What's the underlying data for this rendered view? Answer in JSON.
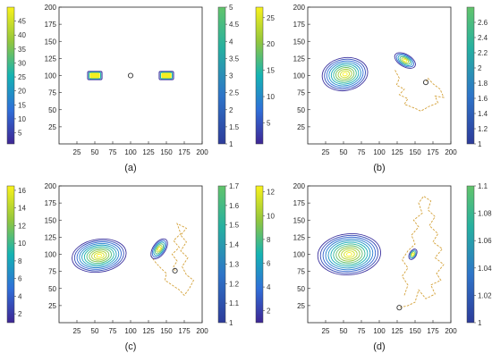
{
  "chart_data": [
    {
      "type": "contour",
      "label": "(a)",
      "xlim": [
        0,
        200
      ],
      "ylim": [
        0,
        200
      ],
      "xticks": [
        25,
        50,
        75,
        100,
        125,
        150,
        175,
        200
      ],
      "yticks": [
        25,
        50,
        75,
        100,
        125,
        150,
        175,
        200
      ],
      "left_colorbar": {
        "range": [
          1,
          50
        ],
        "ticks": [
          5,
          10,
          15,
          20,
          25,
          30,
          35,
          40,
          45
        ]
      },
      "right_colorbar": {
        "range": [
          1,
          5
        ],
        "ticks": [
          1,
          1.5,
          2,
          2.5,
          3,
          3.5,
          4,
          4.5,
          5
        ]
      },
      "blobs": [
        {
          "shape": "rect",
          "center": [
            50,
            100
          ],
          "size": [
            20,
            12
          ],
          "levels": 3
        },
        {
          "shape": "rect",
          "center": [
            150,
            100
          ],
          "size": [
            20,
            12
          ],
          "levels": 3
        }
      ],
      "marker": [
        100,
        100
      ],
      "path": []
    },
    {
      "type": "contour",
      "label": "(b)",
      "xlim": [
        0,
        200
      ],
      "ylim": [
        0,
        200
      ],
      "xticks": [
        25,
        50,
        75,
        100,
        125,
        150,
        175,
        200
      ],
      "yticks": [
        25,
        50,
        75,
        100,
        125,
        150,
        175,
        200
      ],
      "left_colorbar": {
        "range": [
          1,
          27
        ],
        "ticks": [
          5,
          10,
          15,
          20,
          25
        ]
      },
      "right_colorbar": {
        "range": [
          1,
          2.8
        ],
        "ticks": [
          1,
          1.2,
          1.4,
          1.6,
          1.8,
          2,
          2.2,
          2.4,
          2.6
        ]
      },
      "blobs": [
        {
          "shape": "ellipse",
          "center": [
            52,
            102
          ],
          "radii": [
            32,
            24
          ],
          "angle": -10,
          "levels": 10
        },
        {
          "shape": "ellipse",
          "center": [
            136,
            122
          ],
          "radii": [
            16,
            9
          ],
          "angle": 30,
          "levels": 6
        }
      ],
      "marker": [
        165,
        90
      ],
      "path": [
        [
          122,
          108
        ],
        [
          128,
          96
        ],
        [
          124,
          86
        ],
        [
          135,
          80
        ],
        [
          128,
          72
        ],
        [
          140,
          66
        ],
        [
          135,
          58
        ],
        [
          150,
          52
        ],
        [
          158,
          48
        ],
        [
          170,
          55
        ],
        [
          182,
          60
        ],
        [
          178,
          70
        ],
        [
          190,
          68
        ],
        [
          185,
          80
        ],
        [
          175,
          88
        ],
        [
          168,
          96
        ],
        [
          165,
          90
        ]
      ]
    },
    {
      "type": "contour",
      "label": "(c)",
      "xlim": [
        0,
        200
      ],
      "ylim": [
        0,
        200
      ],
      "xticks": [
        25,
        50,
        75,
        100,
        125,
        150,
        175,
        200
      ],
      "yticks": [
        25,
        50,
        75,
        100,
        125,
        150,
        175,
        200
      ],
      "left_colorbar": {
        "range": [
          1,
          16.5
        ],
        "ticks": [
          2,
          4,
          6,
          8,
          10,
          12,
          14,
          16
        ]
      },
      "right_colorbar": {
        "range": [
          1,
          1.7
        ],
        "ticks": [
          1,
          1.1,
          1.2,
          1.3,
          1.4,
          1.5,
          1.6,
          1.7
        ]
      },
      "blobs": [
        {
          "shape": "ellipse",
          "center": [
            56,
            98
          ],
          "radii": [
            38,
            24
          ],
          "angle": -8,
          "levels": 11
        },
        {
          "shape": "ellipse",
          "center": [
            140,
            108
          ],
          "radii": [
            16,
            9
          ],
          "angle": -55,
          "levels": 6
        }
      ],
      "marker": [
        162,
        76
      ],
      "path": [
        [
          128,
          98
        ],
        [
          135,
          88
        ],
        [
          142,
          80
        ],
        [
          150,
          72
        ],
        [
          148,
          62
        ],
        [
          158,
          55
        ],
        [
          168,
          48
        ],
        [
          175,
          40
        ],
        [
          182,
          50
        ],
        [
          188,
          62
        ],
        [
          178,
          70
        ],
        [
          172,
          82
        ],
        [
          180,
          95
        ],
        [
          170,
          105
        ],
        [
          178,
          118
        ],
        [
          170,
          128
        ],
        [
          178,
          138
        ],
        [
          165,
          145
        ],
        [
          170,
          130
        ],
        [
          160,
          120
        ],
        [
          168,
          110
        ],
        [
          158,
          100
        ],
        [
          165,
          90
        ],
        [
          160,
          82
        ],
        [
          162,
          76
        ]
      ]
    },
    {
      "type": "contour",
      "label": "(d)",
      "xlim": [
        0,
        200
      ],
      "ylim": [
        0,
        200
      ],
      "xticks": [
        25,
        50,
        75,
        100,
        125,
        150,
        175,
        200
      ],
      "yticks": [
        25,
        50,
        75,
        100,
        125,
        150,
        175,
        200
      ],
      "left_colorbar": {
        "range": [
          1,
          12.5
        ],
        "ticks": [
          2,
          4,
          6,
          8,
          10,
          12
        ]
      },
      "right_colorbar": {
        "range": [
          1,
          1.1
        ],
        "ticks": [
          1,
          1.02,
          1.04,
          1.06,
          1.08,
          1.1
        ]
      },
      "blobs": [
        {
          "shape": "ellipse",
          "center": [
            58,
            100
          ],
          "radii": [
            44,
            30
          ],
          "angle": -5,
          "levels": 12
        },
        {
          "shape": "ellipse",
          "center": [
            147,
            100
          ],
          "radii": [
            8,
            5
          ],
          "angle": -60,
          "levels": 4
        }
      ],
      "marker": [
        128,
        22
      ],
      "path": [
        [
          135,
          40
        ],
        [
          140,
          55
        ],
        [
          132,
          68
        ],
        [
          140,
          80
        ],
        [
          132,
          92
        ],
        [
          140,
          105
        ],
        [
          150,
          115
        ],
        [
          145,
          128
        ],
        [
          155,
          140
        ],
        [
          148,
          150
        ],
        [
          160,
          160
        ],
        [
          155,
          175
        ],
        [
          162,
          185
        ],
        [
          172,
          178
        ],
        [
          168,
          165
        ],
        [
          178,
          155
        ],
        [
          170,
          142
        ],
        [
          182,
          130
        ],
        [
          175,
          118
        ],
        [
          188,
          108
        ],
        [
          178,
          95
        ],
        [
          190,
          85
        ],
        [
          180,
          72
        ],
        [
          186,
          62
        ],
        [
          172,
          55
        ],
        [
          178,
          42
        ],
        [
          165,
          35
        ],
        [
          155,
          48
        ],
        [
          150,
          30
        ],
        [
          140,
          25
        ],
        [
          128,
          22
        ]
      ]
    }
  ]
}
